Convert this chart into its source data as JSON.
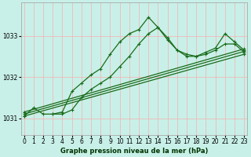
{
  "title": "Graphe pression niveau de la mer (hPa)",
  "bg_color": "#c8f0e8",
  "grid_color": "#f0b8b8",
  "line_color": "#1a6b1a",
  "x_ticks": [
    0,
    1,
    2,
    3,
    4,
    5,
    6,
    7,
    8,
    9,
    10,
    11,
    12,
    13,
    14,
    15,
    16,
    17,
    18,
    19,
    20,
    21,
    22,
    23
  ],
  "ylim": [
    1030.6,
    1033.8
  ],
  "y_ticks": [
    1031,
    1032,
    1033
  ],
  "lines": [
    {
      "x": [
        0,
        1,
        2,
        3,
        4,
        5,
        6,
        7,
        8,
        9,
        10,
        11,
        12,
        13,
        14,
        15,
        16,
        17,
        18,
        19,
        20,
        21,
        22,
        23
      ],
      "y": [
        1031.05,
        1031.25,
        1031.1,
        1031.1,
        1031.15,
        1031.65,
        1031.85,
        1032.05,
        1032.2,
        1032.55,
        1032.85,
        1033.05,
        1033.15,
        1033.45,
        1033.2,
        1032.9,
        1032.65,
        1032.55,
        1032.5,
        1032.6,
        1032.7,
        1033.05,
        1032.85,
        1032.65
      ]
    },
    {
      "x": [
        3,
        4,
        5,
        6,
        7,
        8,
        9,
        10,
        11,
        12,
        13,
        14,
        15,
        16,
        17,
        18,
        19,
        20,
        21,
        22,
        23
      ],
      "y": [
        1031.1,
        1031.1,
        1031.2,
        1031.5,
        1031.7,
        1031.85,
        1032.0,
        1032.25,
        1032.5,
        1032.8,
        1033.05,
        1033.2,
        1032.95,
        1032.65,
        1032.5,
        1032.5,
        1032.55,
        1032.65,
        1032.8,
        1032.8,
        1032.6
      ]
    },
    {
      "x": [
        0,
        23
      ],
      "y": [
        1031.05,
        1032.55
      ]
    },
    {
      "x": [
        0,
        23
      ],
      "y": [
        1031.1,
        1032.62
      ]
    },
    {
      "x": [
        0,
        23
      ],
      "y": [
        1031.15,
        1032.68
      ]
    }
  ],
  "xlabel_fontsize": 6.0,
  "xlabel_color": "#003300",
  "tick_labelsize": 5.5,
  "ylabel_fontsize": 6.0,
  "linewidth": 0.9,
  "markersize": 2.5
}
